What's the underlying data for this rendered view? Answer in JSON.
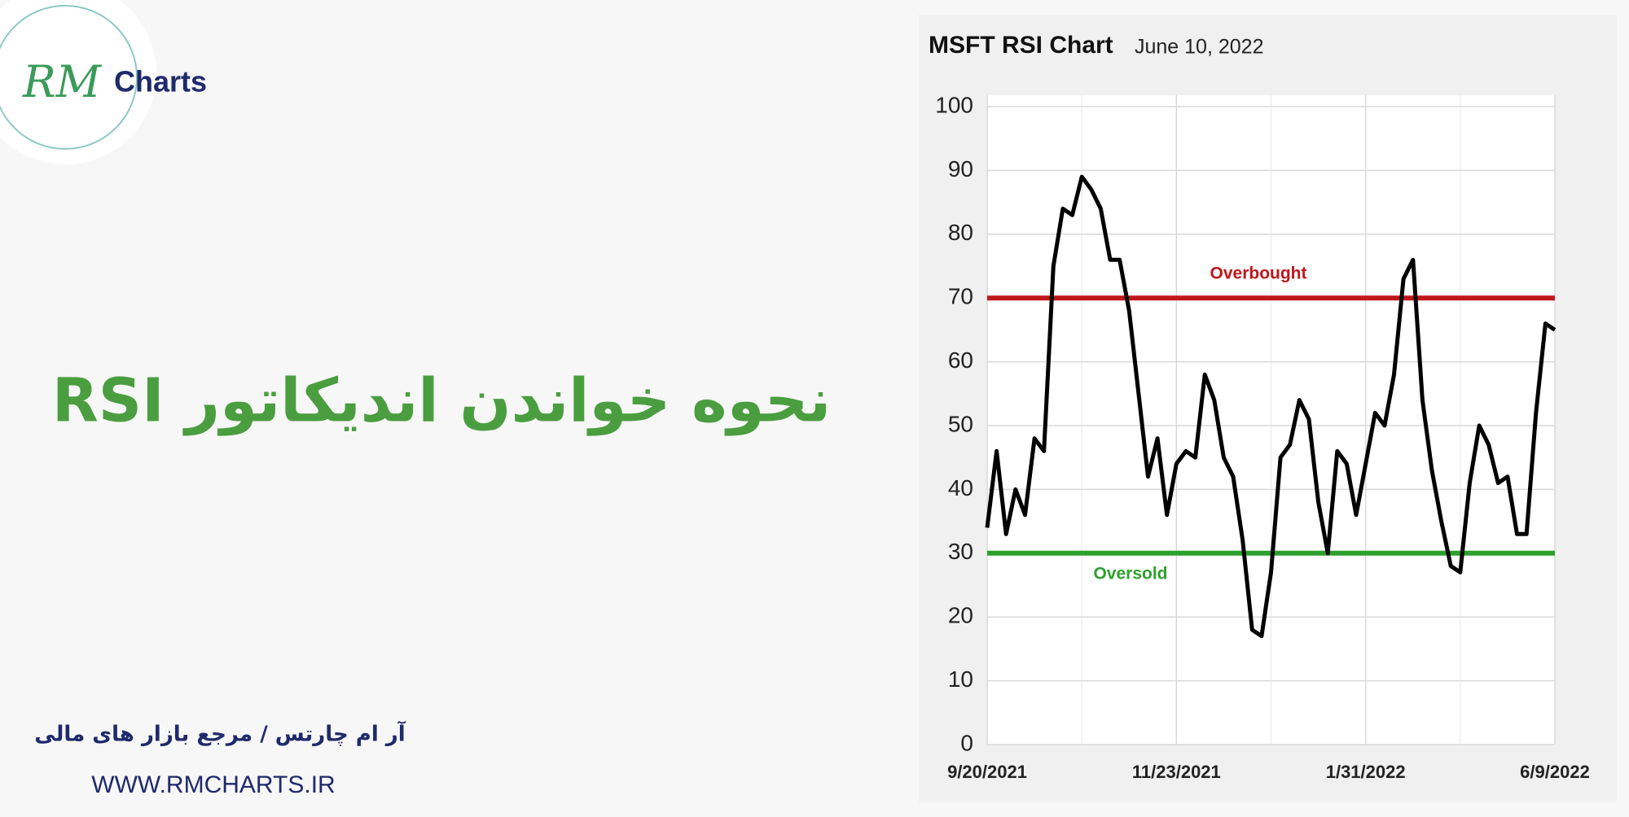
{
  "logo": {
    "mark": "RM",
    "name": "Charts"
  },
  "headline": "نحوه خواندن اندیکاتور RSI",
  "footer": {
    "tagline": "آر ام چارتس / مرجع بازار های مالی",
    "url": "WWW.RMCHARTS.IR"
  },
  "chart_data": {
    "type": "line",
    "title": "MSFT RSI Chart",
    "subtitle": "June 10, 2022",
    "categories": [
      "9/20/2021",
      null,
      null,
      null,
      null,
      null,
      null,
      null,
      null,
      null,
      null,
      null,
      null,
      null,
      null,
      null,
      null,
      null,
      null,
      null,
      "11/23/2021",
      null,
      null,
      null,
      null,
      null,
      null,
      null,
      null,
      null,
      null,
      null,
      null,
      null,
      null,
      null,
      null,
      null,
      null,
      null,
      "1/31/2022",
      null,
      null,
      null,
      null,
      null,
      null,
      null,
      null,
      null,
      null,
      null,
      null,
      null,
      null,
      null,
      null,
      null,
      null,
      null,
      "6/9/2022"
    ],
    "values": [
      34,
      46,
      33,
      40,
      36,
      48,
      46,
      75,
      84,
      83,
      89,
      87,
      84,
      76,
      76,
      68,
      55,
      42,
      48,
      36,
      44,
      46,
      45,
      58,
      54,
      45,
      42,
      32,
      18,
      17,
      27,
      45,
      47,
      54,
      51,
      38,
      30,
      46,
      44,
      36,
      44,
      52,
      50,
      58,
      73,
      76,
      54,
      43,
      35,
      28,
      27,
      41,
      50,
      47,
      41,
      42,
      33,
      33,
      52,
      66,
      65
    ],
    "color": "#000000",
    "ylim": [
      0,
      100
    ],
    "yticks": [
      0,
      10,
      20,
      30,
      40,
      50,
      60,
      70,
      80,
      90,
      100
    ],
    "grid": true,
    "reference_lines": [
      {
        "value": 70,
        "label": "Overbought",
        "color": "#c0161b"
      },
      {
        "value": 30,
        "label": "Oversold",
        "color": "#2ca02c"
      }
    ]
  }
}
